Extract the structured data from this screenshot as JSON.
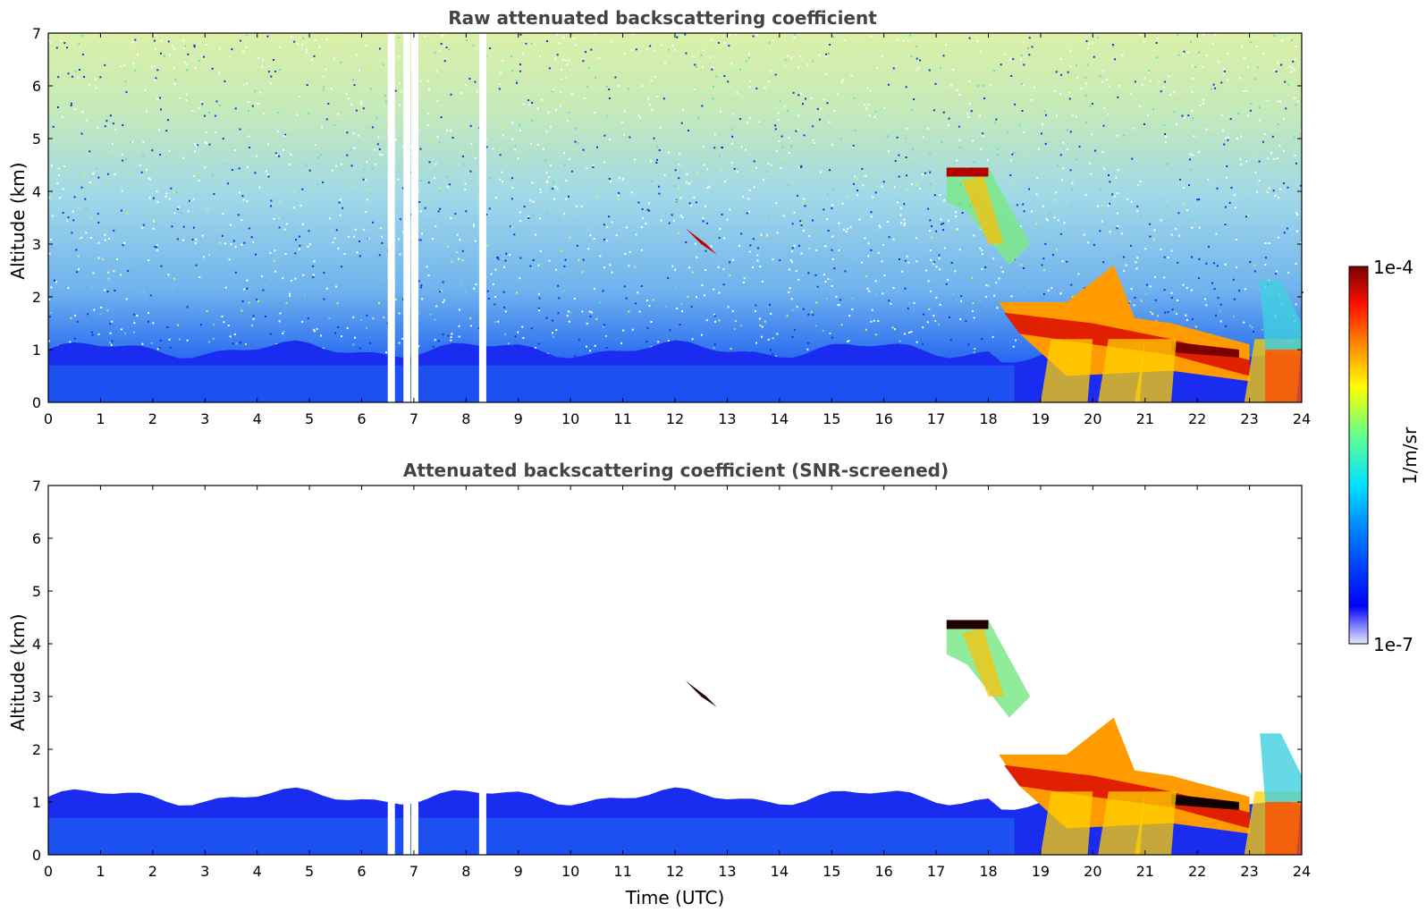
{
  "chart_data": [
    {
      "type": "heatmap",
      "title": "Raw attenuated backscattering coefficient",
      "xlabel": "",
      "ylabel": "Altitude (km)",
      "xlim": [
        0,
        24
      ],
      "ylim": [
        0,
        7
      ],
      "x_ticks": [
        "0",
        "1",
        "2",
        "3",
        "4",
        "5",
        "6",
        "7",
        "8",
        "9",
        "10",
        "11",
        "12",
        "13",
        "14",
        "15",
        "16",
        "17",
        "18",
        "19",
        "20",
        "21",
        "22",
        "23",
        "24"
      ],
      "y_ticks": [
        "0",
        "1",
        "2",
        "3",
        "4",
        "5",
        "6",
        "7"
      ],
      "missing_data_hours": [
        6.5,
        6.8,
        6.95,
        8.25
      ],
      "features": [
        {
          "kind": "boundary layer",
          "hours": [
            0,
            24
          ],
          "top_km": 1.0
        },
        {
          "kind": "thin cloud",
          "hours": [
            12.2,
            12.8
          ],
          "altitude_km": [
            2.8,
            3.3
          ]
        },
        {
          "kind": "cirrus / fall streaks",
          "hours": [
            17.2,
            18.8
          ],
          "altitude_km": [
            2.5,
            4.5
          ]
        },
        {
          "kind": "cloud deck",
          "hours": [
            18.2,
            23.0
          ],
          "altitude_km": [
            0.5,
            2.0
          ]
        },
        {
          "kind": "rain",
          "hours": [
            19.0,
            24.0
          ],
          "altitude_km": [
            0.0,
            1.5
          ]
        }
      ]
    },
    {
      "type": "heatmap",
      "title": "Attenuated backscattering coefficient (SNR-screened)",
      "xlabel": "Time (UTC)",
      "ylabel": "Altitude (km)",
      "xlim": [
        0,
        24
      ],
      "ylim": [
        0,
        7
      ],
      "x_ticks": [
        "0",
        "1",
        "2",
        "3",
        "4",
        "5",
        "6",
        "7",
        "8",
        "9",
        "10",
        "11",
        "12",
        "13",
        "14",
        "15",
        "16",
        "17",
        "18",
        "19",
        "20",
        "21",
        "22",
        "23",
        "24"
      ],
      "y_ticks": [
        "0",
        "1",
        "2",
        "3",
        "4",
        "5",
        "6",
        "7"
      ],
      "missing_data_hours": [
        6.5,
        6.8,
        6.95,
        8.25
      ]
    }
  ],
  "colorbar": {
    "label": "1/m/sr",
    "max_label": "1e-4",
    "min_label": "1e-7",
    "scale": "log",
    "colormap": "jet"
  }
}
